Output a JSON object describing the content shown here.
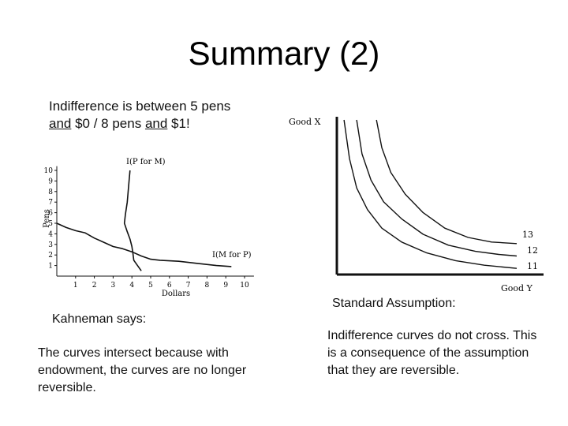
{
  "slide": {
    "title": "Summary (2)",
    "intro": {
      "part1": "Indifference is between 5 pens",
      "and1": "and",
      "part2": " $0 / 8 pens ",
      "and2": "and",
      "part3": " $1!"
    },
    "kahneman_heading": "Kahneman says:",
    "kahneman_text": "The curves intersect because with endowment, the curves are no longer reversible.",
    "standard_heading": "Standard Assumption:",
    "standard_text": "Indifference curves do not cross. This is a consequence of the assumption that they are reversible."
  },
  "chart_data": [
    {
      "type": "line",
      "xlabel": "Dollars",
      "ylabel": "Pens",
      "xlim": [
        0,
        10
      ],
      "ylim": [
        0,
        10
      ],
      "x_ticks": [
        "1",
        "2",
        "3",
        "4",
        "5",
        "6",
        "7",
        "8",
        "9",
        "10"
      ],
      "y_ticks": [
        "1",
        "2",
        "3",
        "4",
        "5",
        "6",
        "7",
        "8",
        "9",
        "10"
      ],
      "series": [
        {
          "name": "I(P for M)",
          "points": [
            [
              3.9,
              10.0
            ],
            [
              3.85,
              9.0
            ],
            [
              3.75,
              7.0
            ],
            [
              3.65,
              5.8
            ],
            [
              3.6,
              5.0
            ],
            [
              3.75,
              4.2
            ],
            [
              3.9,
              3.5
            ],
            [
              4.0,
              2.8
            ],
            [
              4.05,
              2.2
            ],
            [
              4.1,
              1.5
            ],
            [
              4.3,
              1.0
            ],
            [
              4.5,
              0.5
            ]
          ]
        },
        {
          "name": "I(M for P)",
          "points": [
            [
              0.0,
              5.0
            ],
            [
              0.5,
              4.6
            ],
            [
              1.0,
              4.3
            ],
            [
              1.5,
              4.1
            ],
            [
              2.0,
              3.6
            ],
            [
              2.5,
              3.2
            ],
            [
              3.0,
              2.8
            ],
            [
              3.5,
              2.6
            ],
            [
              4.0,
              2.3
            ],
            [
              4.5,
              1.9
            ],
            [
              5.0,
              1.6
            ],
            [
              5.5,
              1.5
            ],
            [
              6.5,
              1.4
            ],
            [
              7.5,
              1.2
            ],
            [
              8.5,
              1.0
            ],
            [
              9.3,
              0.9
            ]
          ]
        }
      ]
    },
    {
      "type": "line",
      "xlabel": "Good Y",
      "ylabel": "Good X",
      "series": [
        {
          "name": "I1",
          "points": [
            [
              0.04,
              1.0
            ],
            [
              0.07,
              0.75
            ],
            [
              0.11,
              0.56
            ],
            [
              0.17,
              0.42
            ],
            [
              0.25,
              0.3
            ],
            [
              0.36,
              0.21
            ],
            [
              0.5,
              0.14
            ],
            [
              0.66,
              0.09
            ],
            [
              0.82,
              0.06
            ],
            [
              1.0,
              0.04
            ]
          ]
        },
        {
          "name": "I2",
          "points": [
            [
              0.11,
              1.0
            ],
            [
              0.14,
              0.78
            ],
            [
              0.19,
              0.61
            ],
            [
              0.26,
              0.47
            ],
            [
              0.36,
              0.36
            ],
            [
              0.48,
              0.26
            ],
            [
              0.62,
              0.19
            ],
            [
              0.77,
              0.15
            ],
            [
              0.9,
              0.13
            ],
            [
              1.0,
              0.12
            ]
          ]
        },
        {
          "name": "I3",
          "points": [
            [
              0.22,
              1.0
            ],
            [
              0.25,
              0.82
            ],
            [
              0.3,
              0.66
            ],
            [
              0.38,
              0.52
            ],
            [
              0.48,
              0.4
            ],
            [
              0.6,
              0.3
            ],
            [
              0.73,
              0.24
            ],
            [
              0.86,
              0.21
            ],
            [
              1.0,
              0.2
            ]
          ]
        }
      ],
      "curve_labels": [
        "13",
        "12",
        "11"
      ]
    }
  ]
}
